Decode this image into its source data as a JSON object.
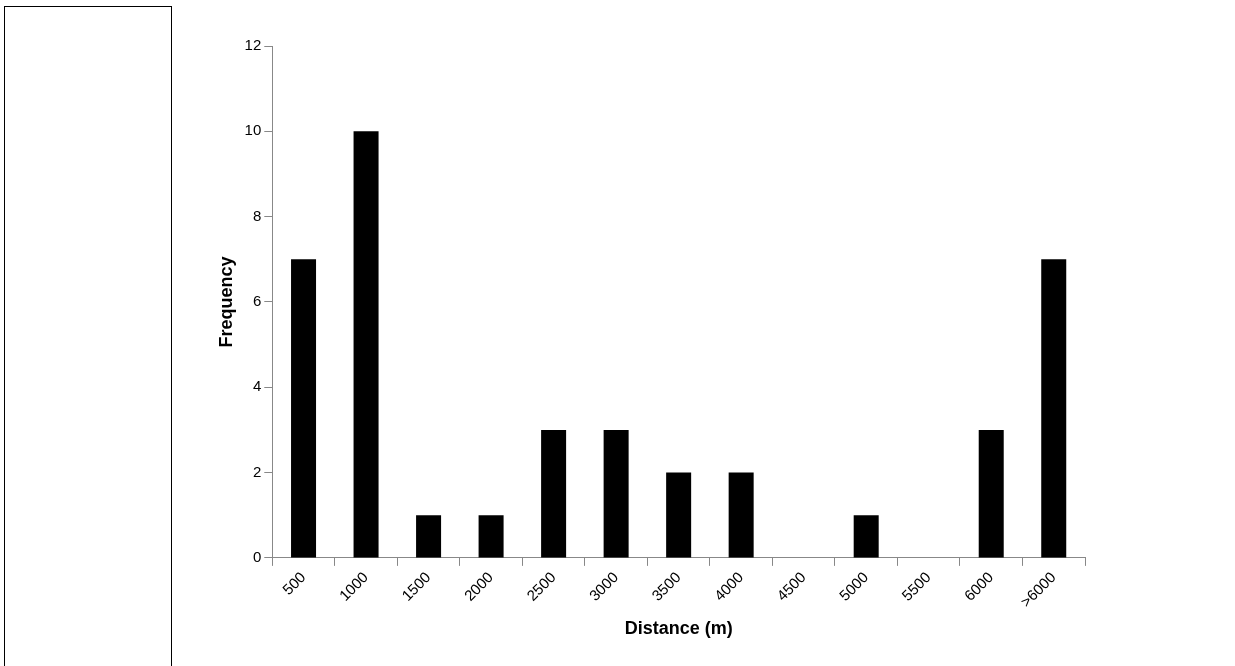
{
  "chart_data": {
    "type": "bar",
    "xlabel": "Distance (m)",
    "ylabel": "Frequency",
    "categories": [
      "500",
      "1000",
      "1500",
      "2000",
      "2500",
      "3000",
      "3500",
      "4000",
      "4500",
      "5000",
      "5500",
      "6000",
      ">6000"
    ],
    "values": [
      7,
      10,
      1,
      1,
      3,
      3,
      2,
      2,
      0,
      1,
      0,
      3,
      7
    ],
    "color": "#000000",
    "ylim": [
      0,
      12
    ],
    "yticks": [
      0,
      2,
      4,
      6,
      8,
      10,
      12
    ],
    "grid": false,
    "legend": false
  }
}
